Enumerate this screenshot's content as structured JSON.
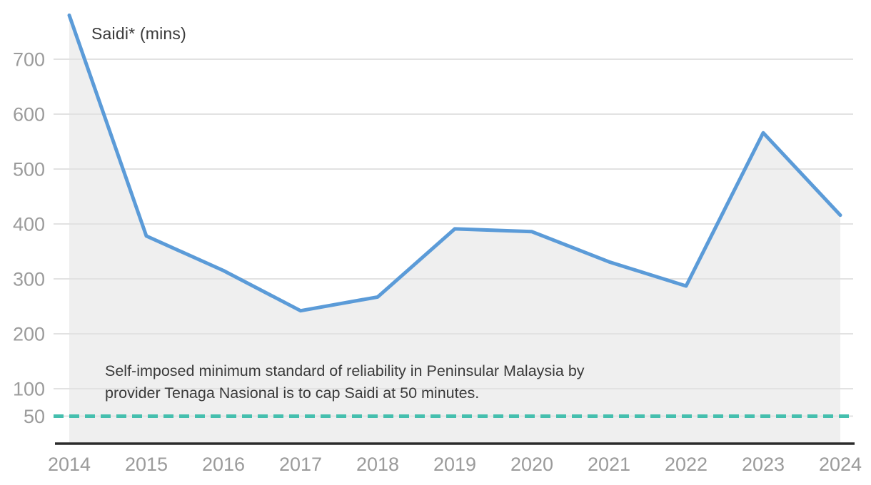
{
  "page": {
    "background": "#ffffff"
  },
  "chart_data": {
    "type": "area",
    "title": "Saidi* (mins)",
    "categories": [
      "2014",
      "2015",
      "2016",
      "2017",
      "2018",
      "2019",
      "2020",
      "2021",
      "2022",
      "2023",
      "2024"
    ],
    "series": [
      {
        "name": "Saidi* (mins)",
        "values": [
          780,
          378,
          315,
          242,
          267,
          391,
          386,
          331,
          287,
          566,
          416
        ]
      }
    ],
    "xlabel": "",
    "ylabel": "Saidi* (mins)",
    "ylim": [
      0,
      790
    ],
    "y_ticks": [
      50,
      100,
      200,
      300,
      400,
      500,
      600,
      700
    ],
    "grid": true,
    "legend_position": "none",
    "reference_line": {
      "value": 50,
      "style": "dashed",
      "color": "#45bfae"
    },
    "annotation": {
      "line1": "Self-imposed minimum standard of reliability in Peninsular Malaysia by",
      "line2": "provider Tenaga Nasional is to cap Saidi at 50 minutes."
    },
    "colors": {
      "line": "#5b9bd8",
      "area_fill": "#efefef",
      "gridline": "#e2e2e2",
      "axis": "#2b2b2b",
      "tick_label": "#9b9b9b",
      "text": "#3a3a3a"
    }
  }
}
